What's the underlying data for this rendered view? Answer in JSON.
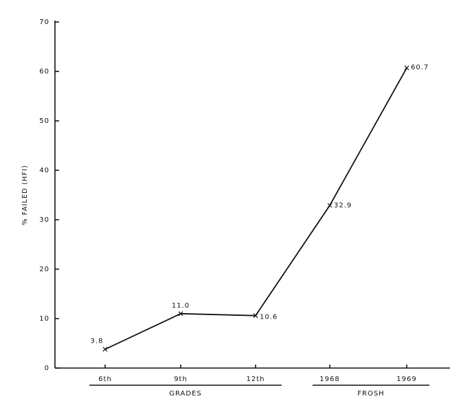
{
  "chart_data": {
    "type": "line",
    "y_label": "% FAILED (HFI)",
    "categories": [
      "6th",
      "9th",
      "12th",
      "1968",
      "1969"
    ],
    "values": [
      3.8,
      11.0,
      10.6,
      32.9,
      60.7
    ],
    "value_labels": [
      "3.8",
      "11.0",
      "10.6",
      "32.9",
      "60.7"
    ],
    "group_labels": [
      "GRADES",
      "FROSH"
    ],
    "color": "#111111",
    "ylim": [
      0,
      70
    ],
    "yticks": [
      0,
      10,
      20,
      30,
      40,
      50,
      60,
      70
    ],
    "grid": false
  }
}
